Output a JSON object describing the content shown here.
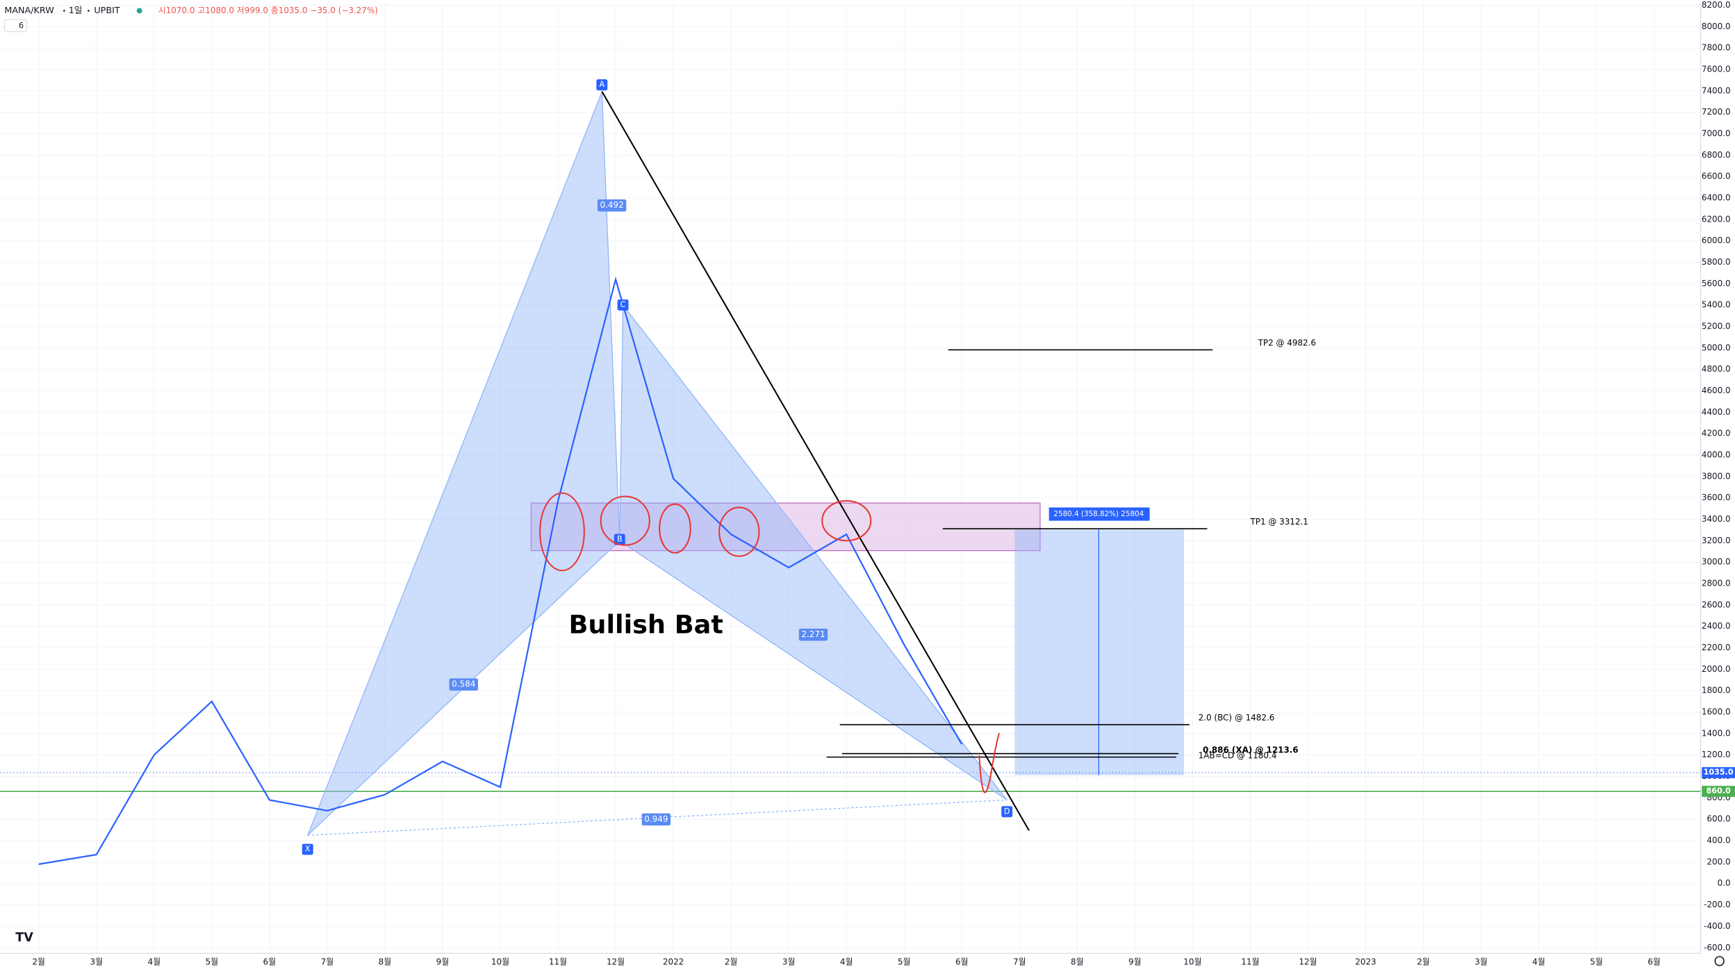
{
  "chart_data": {
    "type": "line",
    "header": {
      "symbol": "MANA/KRW",
      "interval": "1일",
      "exchange": "UPBIT",
      "ohlc": "시1070.0 고1080.0 저999.0 종1035.0 −35.0 (−3.27%)",
      "indicator_count": "6"
    },
    "x": [
      "2월",
      "3월",
      "4월",
      "5월",
      "6월",
      "7월",
      "8월",
      "9월",
      "10월",
      "11월",
      "12월",
      "2022",
      "2월",
      "3월",
      "4월",
      "5월",
      "6월",
      "7월",
      "8월",
      "9월",
      "10월",
      "11월",
      "12월",
      "2023",
      "2월",
      "3월",
      "4월",
      "5월",
      "6월"
    ],
    "series": [
      {
        "color": "#2962ff",
        "values": [
          180,
          270,
          1200,
          1700,
          780,
          680,
          830,
          1140,
          900,
          3570,
          5640,
          3780,
          3260,
          2950,
          3260,
          2230,
          1300,
          null,
          null,
          null,
          null,
          null,
          null,
          null,
          null,
          null,
          null,
          null,
          null
        ]
      }
    ],
    "ylim": [
      -600,
      8200
    ],
    "yticks": [
      {
        "value": 8200,
        "label": "8200.0"
      },
      {
        "value": 8000,
        "label": "8000.0"
      },
      {
        "value": 7800,
        "label": "7800.0"
      },
      {
        "value": 7600,
        "label": "7600.0"
      },
      {
        "value": 7400,
        "label": "7400.0"
      },
      {
        "value": 7200,
        "label": "7200.0"
      },
      {
        "value": 7000,
        "label": "7000.0"
      },
      {
        "value": 6800,
        "label": "6800.0"
      },
      {
        "value": 6600,
        "label": "6600.0"
      },
      {
        "value": 6400,
        "label": "6400.0"
      },
      {
        "value": 6200,
        "label": "6200.0"
      },
      {
        "value": 6000,
        "label": "6000.0"
      },
      {
        "value": 5800,
        "label": "5800.0"
      },
      {
        "value": 5600,
        "label": "5600.0"
      },
      {
        "value": 5400,
        "label": "5400.0"
      },
      {
        "value": 5200,
        "label": "5200.0"
      },
      {
        "value": 5000,
        "label": "5000.0"
      },
      {
        "value": 4800,
        "label": "4800.0"
      },
      {
        "value": 4600,
        "label": "4600.0"
      },
      {
        "value": 4400,
        "label": "4400.0"
      },
      {
        "value": 4200,
        "label": "4200.0"
      },
      {
        "value": 4000,
        "label": "4000.0"
      },
      {
        "value": 3800,
        "label": "3800.0"
      },
      {
        "value": 3600,
        "label": "3600.0"
      },
      {
        "value": 3400,
        "label": "3400.0"
      },
      {
        "value": 3200,
        "label": "3200.0"
      },
      {
        "value": 3000,
        "label": "3000.0"
      },
      {
        "value": 2800,
        "label": "2800.0"
      },
      {
        "value": 2600,
        "label": "2600.0"
      },
      {
        "value": 2400,
        "label": "2400.0"
      },
      {
        "value": 2200,
        "label": "2200.0"
      },
      {
        "value": 2000,
        "label": "2000.0"
      },
      {
        "value": 1800,
        "label": "1800.0"
      },
      {
        "value": 1600,
        "label": "1600.0"
      },
      {
        "value": 1400,
        "label": "1400.0"
      },
      {
        "value": 1200,
        "label": "1200.0"
      },
      {
        "value": 1000,
        "label": "1000.0"
      },
      {
        "value": 800,
        "label": "800.0"
      },
      {
        "value": 600,
        "label": "600.0"
      },
      {
        "value": 400,
        "label": "400.0"
      },
      {
        "value": 200,
        "label": "200.0"
      },
      {
        "value": 0,
        "label": "0.0"
      },
      {
        "value": -200,
        "label": "-200.0"
      },
      {
        "value": -400,
        "label": "-400.0"
      },
      {
        "value": -600,
        "label": "-600.0"
      }
    ],
    "grid": true,
    "price_lines": [
      {
        "value": 1035,
        "label": "1035.0",
        "color": "#2962ff"
      },
      {
        "value": 860,
        "label": "860.0",
        "color": "#4caf50"
      }
    ],
    "levels": [
      {
        "value": 4982.6,
        "label": "TP2 @ 4982.6"
      },
      {
        "value": 3312.1,
        "label": "TP1 @ 3312.1"
      },
      {
        "value": 1482.6,
        "label": "2.0 (BC) @ 1482.6"
      },
      {
        "value": 1213.6,
        "label": "0.886 (XA) @ 1213.6"
      },
      {
        "value": 1180.4,
        "label": "1AB=CD @ 1180.4"
      }
    ],
    "pattern": {
      "points": [
        {
          "label": "X",
          "value": 450
        },
        {
          "label": "A",
          "value": 7390
        },
        {
          "label": "B",
          "value": 3200
        },
        {
          "label": "C",
          "value": 5400
        },
        {
          "label": "D",
          "value": 780
        }
      ],
      "ratios": [
        "0.584",
        "0.492",
        "2.271",
        "0.949"
      ]
    },
    "annotations": [
      "Bullish Bat",
      "2580.4 (358.82%) 25804"
    ]
  }
}
